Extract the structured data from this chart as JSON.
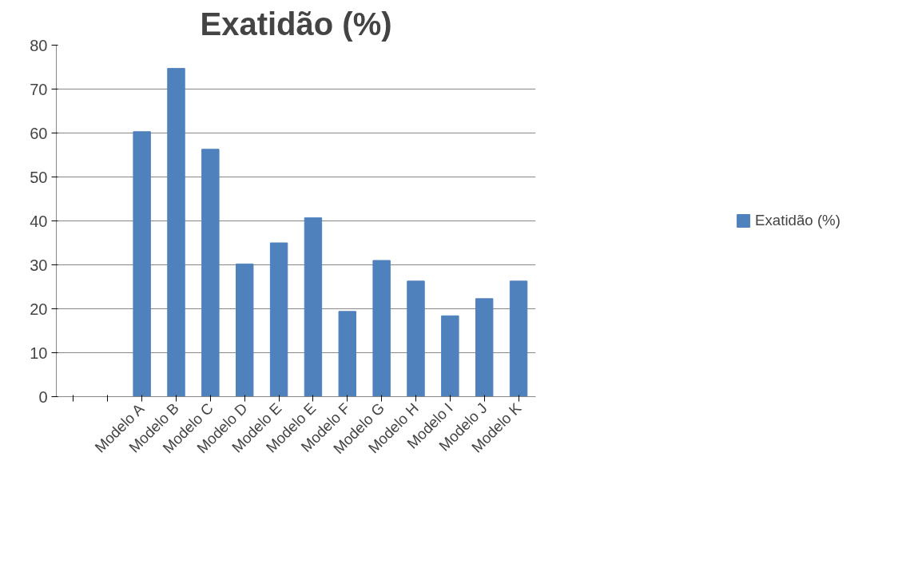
{
  "chart_data": {
    "type": "bar",
    "title": "Exatidão (%)",
    "categories": [
      null,
      null,
      "Modelo A",
      "Modelo B",
      "Modelo C",
      "Modelo D",
      "Modelo E",
      "Modelo E",
      "Modelo F",
      "Modelo G",
      "Modelo H",
      "Modelo I",
      "Modelo J",
      "Modelo K"
    ],
    "series": [
      {
        "name": "Exatidão (%)",
        "color": "#4f81bd",
        "values": [
          null,
          null,
          60.3,
          74.7,
          56.3,
          30.2,
          35.0,
          40.7,
          19.4,
          31.0,
          26.3,
          18.4,
          22.3,
          26.3
        ]
      }
    ],
    "ylim": [
      0,
      80
    ],
    "yticks": [
      0,
      10,
      20,
      30,
      40,
      50,
      60,
      70,
      80
    ],
    "grid": "y",
    "legend": "right"
  }
}
